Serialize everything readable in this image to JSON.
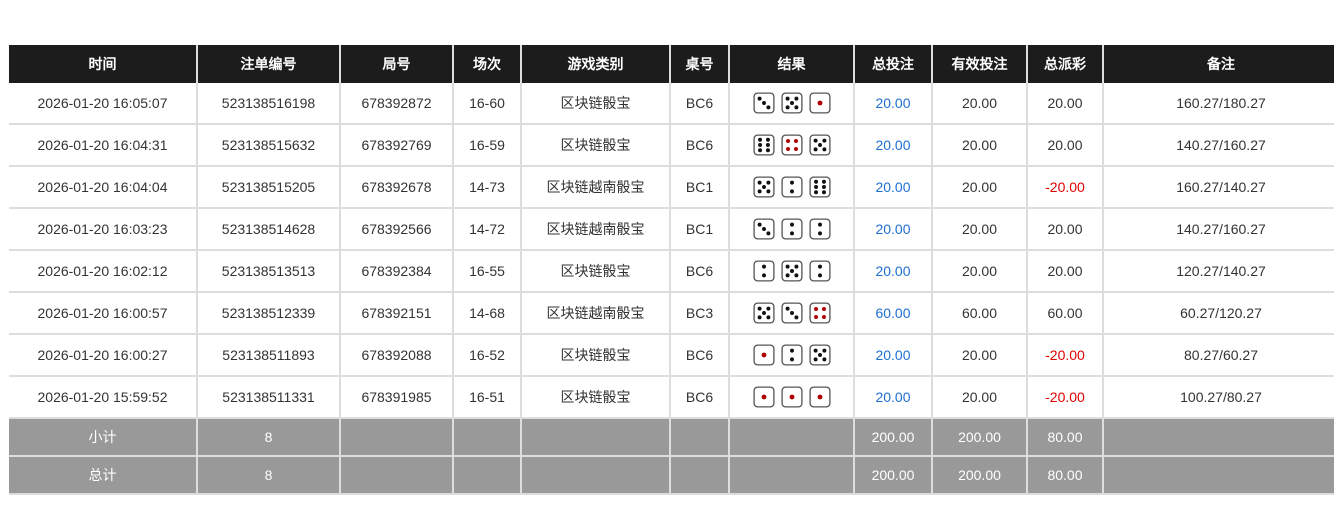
{
  "headers": [
    "时间",
    "注单编号",
    "局号",
    "场次",
    "游戏类别",
    "桌号",
    "结果",
    "总投注",
    "有效投注",
    "总派彩",
    "备注"
  ],
  "rows": [
    {
      "time": "2026-01-20 16:05:07",
      "bet_id": "523138516198",
      "round": "678392872",
      "session": "16-60",
      "game": "区块链骰宝",
      "table": "BC6",
      "dice": [
        3,
        5,
        1
      ],
      "total_bet": "20.00",
      "valid_bet": "20.00",
      "payout": "20.00",
      "payout_negative": false,
      "note": "160.27/180.27"
    },
    {
      "time": "2026-01-20 16:04:31",
      "bet_id": "523138515632",
      "round": "678392769",
      "session": "16-59",
      "game": "区块链骰宝",
      "table": "BC6",
      "dice": [
        6,
        4,
        5
      ],
      "total_bet": "20.00",
      "valid_bet": "20.00",
      "payout": "20.00",
      "payout_negative": false,
      "note": "140.27/160.27"
    },
    {
      "time": "2026-01-20 16:04:04",
      "bet_id": "523138515205",
      "round": "678392678",
      "session": "14-73",
      "game": "区块链越南骰宝",
      "table": "BC1",
      "dice": [
        5,
        2,
        6
      ],
      "total_bet": "20.00",
      "valid_bet": "20.00",
      "payout": "-20.00",
      "payout_negative": true,
      "note": "160.27/140.27"
    },
    {
      "time": "2026-01-20 16:03:23",
      "bet_id": "523138514628",
      "round": "678392566",
      "session": "14-72",
      "game": "区块链越南骰宝",
      "table": "BC1",
      "dice": [
        3,
        2,
        2
      ],
      "total_bet": "20.00",
      "valid_bet": "20.00",
      "payout": "20.00",
      "payout_negative": false,
      "note": "140.27/160.27"
    },
    {
      "time": "2026-01-20 16:02:12",
      "bet_id": "523138513513",
      "round": "678392384",
      "session": "16-55",
      "game": "区块链骰宝",
      "table": "BC6",
      "dice": [
        2,
        5,
        2
      ],
      "total_bet": "20.00",
      "valid_bet": "20.00",
      "payout": "20.00",
      "payout_negative": false,
      "note": "120.27/140.27"
    },
    {
      "time": "2026-01-20 16:00:57",
      "bet_id": "523138512339",
      "round": "678392151",
      "session": "14-68",
      "game": "区块链越南骰宝",
      "table": "BC3",
      "dice": [
        5,
        3,
        4
      ],
      "total_bet": "60.00",
      "valid_bet": "60.00",
      "payout": "60.00",
      "payout_negative": false,
      "note": "60.27/120.27"
    },
    {
      "time": "2026-01-20 16:00:27",
      "bet_id": "523138511893",
      "round": "678392088",
      "session": "16-52",
      "game": "区块链骰宝",
      "table": "BC6",
      "dice": [
        1,
        2,
        5
      ],
      "total_bet": "20.00",
      "valid_bet": "20.00",
      "payout": "-20.00",
      "payout_negative": true,
      "note": "80.27/60.27"
    },
    {
      "time": "2026-01-20 15:59:52",
      "bet_id": "523138511331",
      "round": "678391985",
      "session": "16-51",
      "game": "区块链骰宝",
      "table": "BC6",
      "dice": [
        1,
        1,
        1
      ],
      "total_bet": "20.00",
      "valid_bet": "20.00",
      "payout": "-20.00",
      "payout_negative": true,
      "note": "100.27/80.27"
    }
  ],
  "subtotal": {
    "label": "小计",
    "count": "8",
    "total_bet": "200.00",
    "valid_bet": "200.00",
    "payout": "80.00"
  },
  "total": {
    "label": "总计",
    "count": "8",
    "total_bet": "200.00",
    "valid_bet": "200.00",
    "payout": "80.00"
  },
  "colors": {
    "header_bg": "#1c1c1c",
    "bet_blue": "#1e6fd0",
    "negative_red": "#e00000",
    "summary_bg": "#999999",
    "red_pip": "#b00000"
  }
}
